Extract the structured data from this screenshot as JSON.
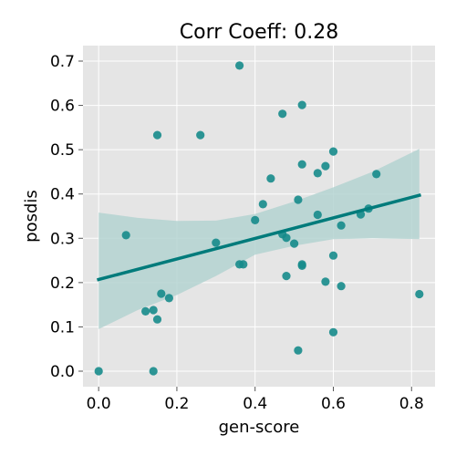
{
  "chart_data": {
    "type": "scatter",
    "title": "Corr Coeff: 0.28",
    "xlabel": "gen-score",
    "ylabel": "posdis",
    "xlim": [
      -0.04,
      0.86
    ],
    "ylim": [
      -0.035,
      0.735
    ],
    "xticks": [
      0.0,
      0.2,
      0.4,
      0.6,
      0.8
    ],
    "xtick_labels": [
      "0.0",
      "0.2",
      "0.4",
      "0.6",
      "0.8"
    ],
    "yticks": [
      0.0,
      0.1,
      0.2,
      0.3,
      0.4,
      0.5,
      0.6,
      0.7
    ],
    "ytick_labels": [
      "0.0",
      "0.1",
      "0.2",
      "0.3",
      "0.4",
      "0.5",
      "0.6",
      "0.7"
    ],
    "grid": true,
    "colors": {
      "background": "#e5e5e5",
      "grid": "#ffffff",
      "point": "#168b8b",
      "line": "#007b7b",
      "band": "#b4d3d1"
    },
    "points": [
      {
        "x": 0.0,
        "y": 0.0
      },
      {
        "x": 0.07,
        "y": 0.307
      },
      {
        "x": 0.12,
        "y": 0.135
      },
      {
        "x": 0.14,
        "y": 0.138
      },
      {
        "x": 0.14,
        "y": 0.0
      },
      {
        "x": 0.15,
        "y": 0.533
      },
      {
        "x": 0.15,
        "y": 0.117
      },
      {
        "x": 0.16,
        "y": 0.175
      },
      {
        "x": 0.18,
        "y": 0.165
      },
      {
        "x": 0.26,
        "y": 0.533
      },
      {
        "x": 0.3,
        "y": 0.29
      },
      {
        "x": 0.36,
        "y": 0.69
      },
      {
        "x": 0.36,
        "y": 0.241
      },
      {
        "x": 0.37,
        "y": 0.241
      },
      {
        "x": 0.4,
        "y": 0.341
      },
      {
        "x": 0.42,
        "y": 0.377
      },
      {
        "x": 0.44,
        "y": 0.435
      },
      {
        "x": 0.47,
        "y": 0.581
      },
      {
        "x": 0.47,
        "y": 0.309
      },
      {
        "x": 0.48,
        "y": 0.301
      },
      {
        "x": 0.48,
        "y": 0.215
      },
      {
        "x": 0.5,
        "y": 0.288
      },
      {
        "x": 0.51,
        "y": 0.387
      },
      {
        "x": 0.51,
        "y": 0.047
      },
      {
        "x": 0.52,
        "y": 0.601
      },
      {
        "x": 0.52,
        "y": 0.467
      },
      {
        "x": 0.52,
        "y": 0.241
      },
      {
        "x": 0.52,
        "y": 0.238
      },
      {
        "x": 0.56,
        "y": 0.447
      },
      {
        "x": 0.56,
        "y": 0.353
      },
      {
        "x": 0.58,
        "y": 0.463
      },
      {
        "x": 0.58,
        "y": 0.202
      },
      {
        "x": 0.6,
        "y": 0.496
      },
      {
        "x": 0.6,
        "y": 0.261
      },
      {
        "x": 0.6,
        "y": 0.088
      },
      {
        "x": 0.62,
        "y": 0.329
      },
      {
        "x": 0.62,
        "y": 0.192
      },
      {
        "x": 0.67,
        "y": 0.354
      },
      {
        "x": 0.69,
        "y": 0.367
      },
      {
        "x": 0.71,
        "y": 0.445
      },
      {
        "x": 0.82,
        "y": 0.174
      }
    ],
    "regression": {
      "x": [
        0.0,
        0.82
      ],
      "y": [
        0.207,
        0.397
      ]
    },
    "confidence_band": {
      "x": [
        0.0,
        0.1,
        0.2,
        0.3,
        0.4,
        0.5,
        0.6,
        0.7,
        0.82
      ],
      "upper": [
        0.358,
        0.346,
        0.339,
        0.34,
        0.355,
        0.383,
        0.415,
        0.45,
        0.502
      ],
      "lower": [
        0.095,
        0.138,
        0.172,
        0.215,
        0.263,
        0.283,
        0.298,
        0.3,
        0.298
      ]
    }
  }
}
